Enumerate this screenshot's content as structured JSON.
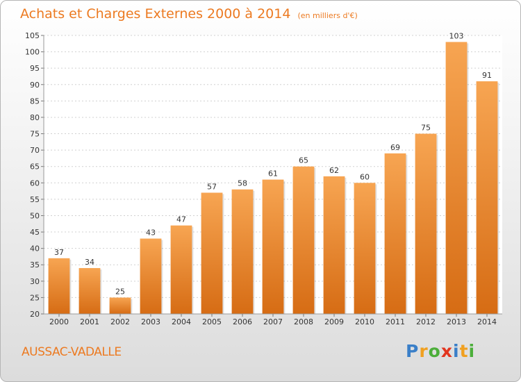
{
  "chart_data": {
    "type": "bar",
    "title": "Achats et Charges Externes 2000 à 2014",
    "subtitle": "(en milliers d'€)",
    "categories": [
      "2000",
      "2001",
      "2002",
      "2003",
      "2004",
      "2005",
      "2006",
      "2007",
      "2008",
      "2009",
      "2010",
      "2011",
      "2012",
      "2013",
      "2014"
    ],
    "values": [
      37,
      34,
      25,
      43,
      47,
      57,
      58,
      61,
      65,
      62,
      60,
      69,
      75,
      103,
      91
    ],
    "ylim": [
      20,
      105
    ],
    "yticks": [
      20,
      25,
      30,
      35,
      40,
      45,
      50,
      55,
      60,
      65,
      70,
      75,
      80,
      85,
      90,
      95,
      100,
      105
    ],
    "grid": true,
    "bar_color": "#f08a2c"
  },
  "commune": "AUSSAC-VADALLE",
  "logo": {
    "letters": [
      "P",
      "r",
      "o",
      "x",
      "i",
      "t",
      "i"
    ],
    "colors": [
      "#3a7fc8",
      "#f0a020",
      "#4cae3a",
      "#e2351f",
      "#3a7fc8",
      "#f0a020",
      "#4cae3a"
    ]
  }
}
